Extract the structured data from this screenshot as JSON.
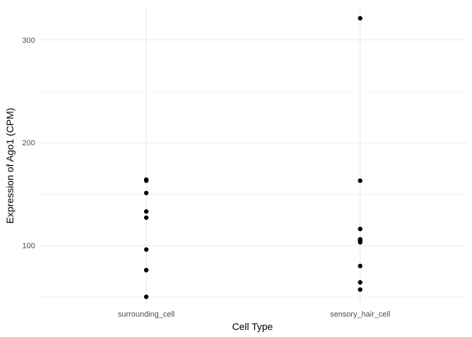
{
  "chart_data": {
    "type": "scatter",
    "title": "",
    "xlabel": "Cell Type",
    "ylabel": "Expression of Ago1 (CPM)",
    "categories": [
      "surrounding_cell",
      "sensory_hair_cell"
    ],
    "ylim": [
      43,
      334
    ],
    "y_ticks": [
      100,
      200,
      300
    ],
    "y_minor_ticks": [
      50,
      150,
      250
    ],
    "grid": true,
    "legend": "none",
    "point_color": "#000000",
    "grid_color": "#ebebeb",
    "series": [
      {
        "category": "surrounding_cell",
        "values": [
          164,
          163,
          151,
          133,
          127,
          96,
          76,
          50
        ]
      },
      {
        "category": "sensory_hair_cell",
        "values": [
          321,
          163,
          116,
          106,
          105,
          104,
          103,
          80,
          64,
          57
        ]
      }
    ]
  }
}
